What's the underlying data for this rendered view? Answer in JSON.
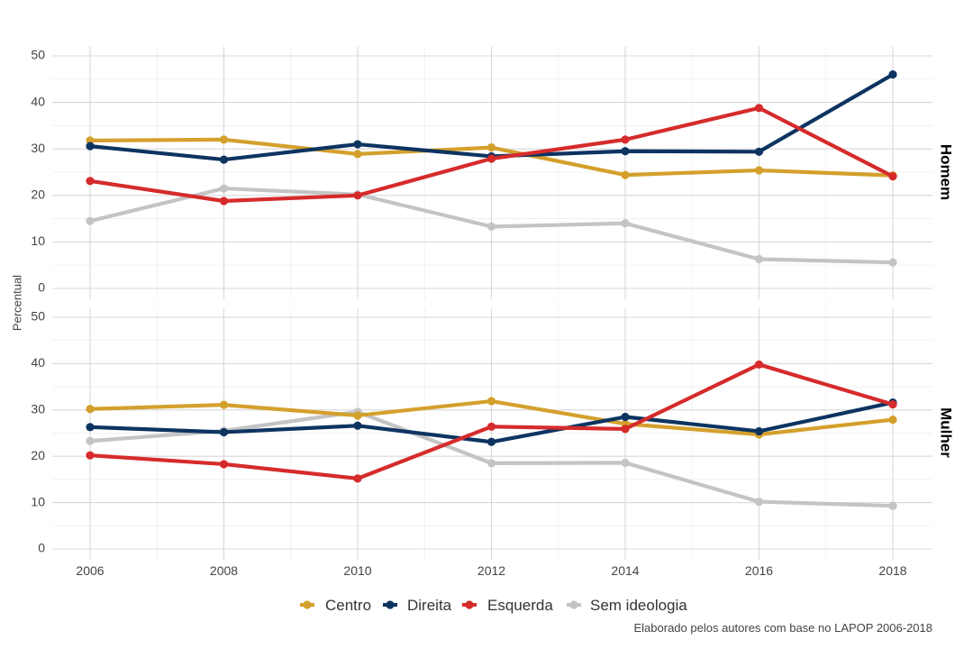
{
  "chart_data": {
    "type": "line",
    "x": [
      2006,
      2008,
      2010,
      2012,
      2014,
      2016,
      2018
    ],
    "ylabel": "Percentual",
    "ylim": [
      0,
      52
    ],
    "yticks": [
      0,
      10,
      20,
      30,
      40,
      50
    ],
    "grid": true,
    "legend_position": "bottom",
    "caption": "Elaborado pelos autores com base no LAPOP 2006-2018",
    "series_legend": [
      {
        "name": "Centro",
        "color": "#d4a02c"
      },
      {
        "name": "Direita",
        "color": "#0d3461"
      },
      {
        "name": "Esquerda",
        "color": "#d62b2b"
      },
      {
        "name": "Sem ideologia",
        "color": "#c4c4c4"
      }
    ],
    "panels": [
      {
        "strip": "Homem",
        "series": [
          {
            "name": "Sem ideologia",
            "values": [
              14.5,
              21.5,
              20.2,
              13.3,
              14.0,
              6.3,
              5.6
            ]
          },
          {
            "name": "Centro",
            "values": [
              31.8,
              32.0,
              28.9,
              30.3,
              24.4,
              25.4,
              24.3
            ]
          },
          {
            "name": "Direita",
            "values": [
              30.6,
              27.7,
              31.0,
              28.4,
              29.5,
              29.4,
              46.0
            ]
          },
          {
            "name": "Esquerda",
            "values": [
              23.1,
              18.8,
              20.0,
              27.9,
              32.0,
              38.8,
              24.1
            ]
          }
        ]
      },
      {
        "strip": "Mulher",
        "series": [
          {
            "name": "Sem ideologia",
            "values": [
              23.3,
              25.5,
              29.6,
              18.5,
              18.6,
              10.2,
              9.3
            ]
          },
          {
            "name": "Centro",
            "values": [
              30.2,
              31.1,
              28.8,
              31.9,
              27.0,
              24.7,
              27.9
            ]
          },
          {
            "name": "Direita",
            "values": [
              26.3,
              25.2,
              26.6,
              23.1,
              28.5,
              25.4,
              31.6
            ]
          },
          {
            "name": "Esquerda",
            "values": [
              20.2,
              18.3,
              15.2,
              26.4,
              25.9,
              39.8,
              31.2
            ]
          }
        ]
      }
    ]
  }
}
